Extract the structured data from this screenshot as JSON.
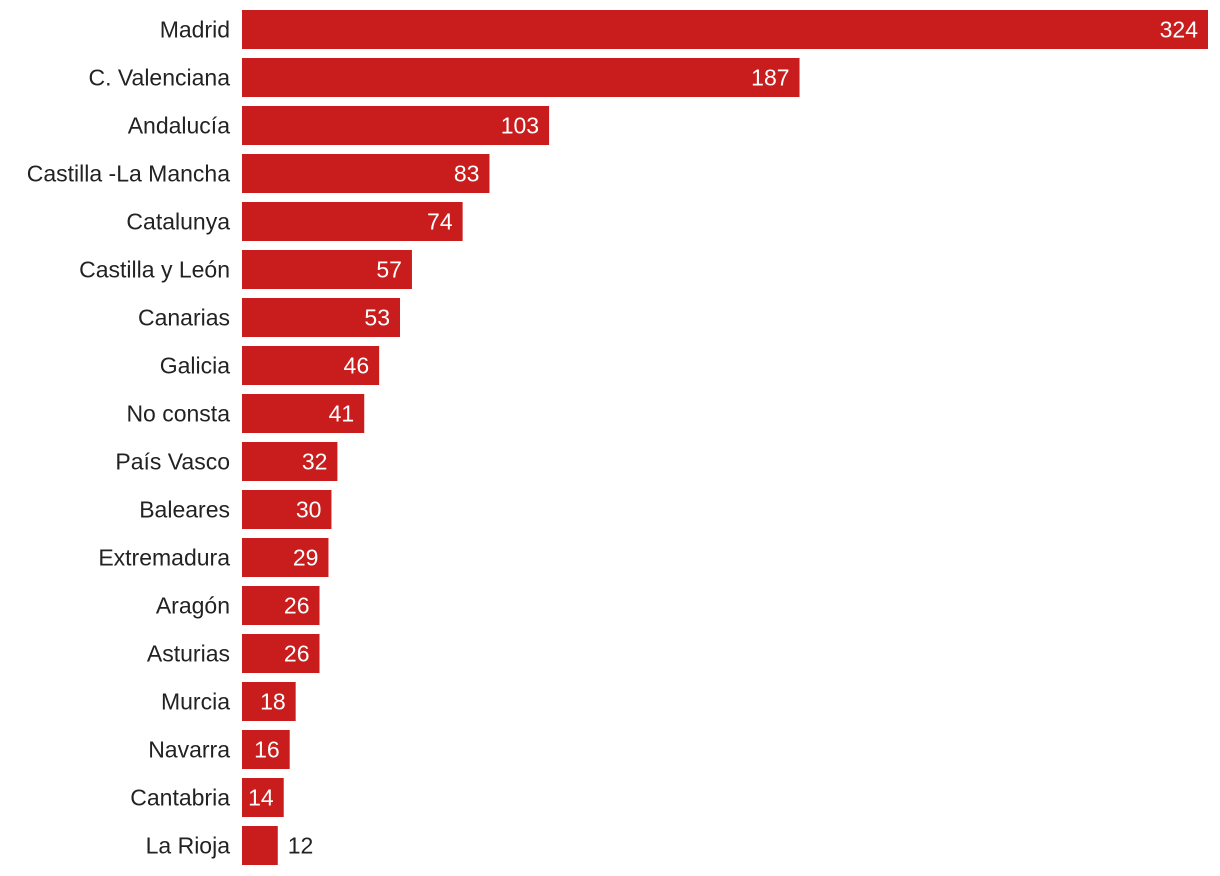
{
  "chart_data": {
    "type": "bar",
    "orientation": "horizontal",
    "title": "",
    "xlabel": "",
    "ylabel": "",
    "grid": false,
    "legend": "none",
    "bar_color": "#c91d1d",
    "label_inside_color": "#ffffff",
    "label_outside_color": "#222222",
    "xlim": [
      0,
      324
    ],
    "categories": [
      "Madrid",
      "C. Valenciana",
      "Andalucía",
      "Castilla -La Mancha",
      "Catalunya",
      "Castilla y León",
      "Canarias",
      "Galicia",
      "No consta",
      "País Vasco",
      "Baleares",
      "Extremadura",
      "Aragón",
      "Asturias",
      "Murcia",
      "Navarra",
      "Cantabria",
      "La Rioja"
    ],
    "values": [
      324,
      187,
      103,
      83,
      74,
      57,
      53,
      46,
      41,
      32,
      30,
      29,
      26,
      26,
      18,
      16,
      14,
      12
    ],
    "value_labels": [
      "324",
      "187",
      "103",
      "83",
      "74",
      "57",
      "53",
      "46",
      "41",
      "32",
      "30",
      "29",
      "26",
      "26",
      "18",
      "16",
      "14",
      "12"
    ]
  }
}
